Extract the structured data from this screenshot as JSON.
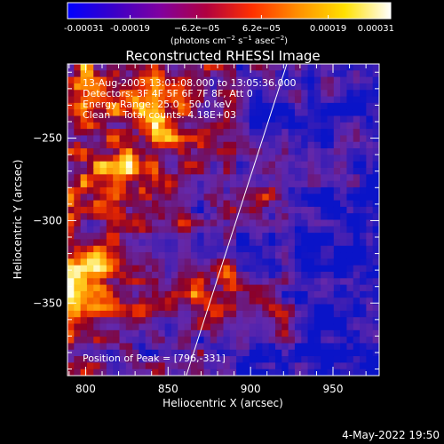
{
  "chart_data": {
    "type": "heatmap",
    "title": "Reconstructed RHESSI Image",
    "xlabel": "Heliocentric X (arcsec)",
    "ylabel": "Heliocentric Y (arcsec)",
    "xlim": [
      789,
      978
    ],
    "ylim": [
      -394,
      -205
    ],
    "x_ticks": [
      800,
      850,
      900,
      950
    ],
    "x_tick_labels": [
      "800",
      "850",
      "900",
      "950"
    ],
    "y_ticks": [
      -250,
      -300,
      -350
    ],
    "y_tick_labels": [
      "−250",
      "−300",
      "−350"
    ],
    "colorbar": {
      "range": [
        -0.00031,
        0.00031
      ],
      "tick_values": [
        -0.00031,
        -0.00019,
        -6.2e-05,
        6.2e-05,
        0.00019,
        0.00031
      ],
      "tick_labels": [
        "-0.00031",
        "-0.00019",
        "−6.2e−05",
        "6.2e−05",
        "0.00019",
        "0.00031"
      ],
      "units_parts": [
        "(photons cm",
        "−2",
        " s",
        "−1",
        " asec",
        "−2",
        ")"
      ],
      "colors": [
        "#0000ff",
        "#3a00c8",
        "#8000a0",
        "#b00040",
        "#ff3000",
        "#ff9000",
        "#ffe000",
        "#ffffff"
      ]
    },
    "annotations": [
      "13-Aug-2003 13:01:08.000 to 13:05:36.000",
      "Detectors: 3F 4F 5F 6F 7F 8F, Att 0",
      "Energy Range: 25.0 - 50.0 keV",
      "Clean    Total counts: 4.18E+03"
    ],
    "peak_label": "Position of Peak = [796,-331]",
    "limb_line": {
      "points": [
        [
          861,
          -394
        ],
        [
          922,
          -205
        ]
      ],
      "color": "#ffffff"
    },
    "grid": false
  },
  "footer": {
    "date": "4-May-2022 19:50"
  }
}
